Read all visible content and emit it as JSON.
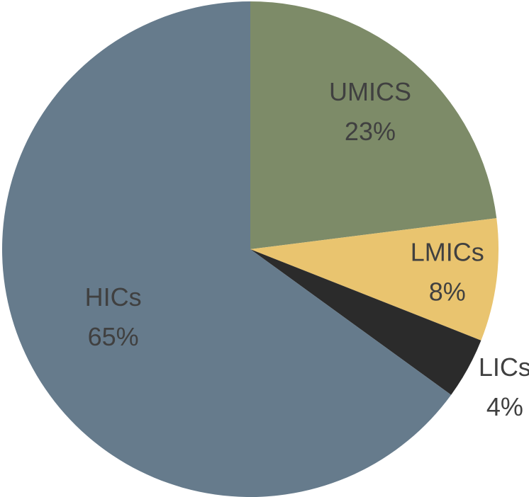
{
  "chart_data": {
    "type": "pie",
    "categories": [
      "UMICS",
      "LMICs",
      "LICs",
      "HICs"
    ],
    "values": [
      23,
      8,
      4,
      65
    ],
    "value_labels": [
      "23%",
      "8%",
      "4%",
      "65%"
    ],
    "colors": [
      "#7d8b68",
      "#e9c46f",
      "#2b2b2b",
      "#667b8c"
    ]
  }
}
